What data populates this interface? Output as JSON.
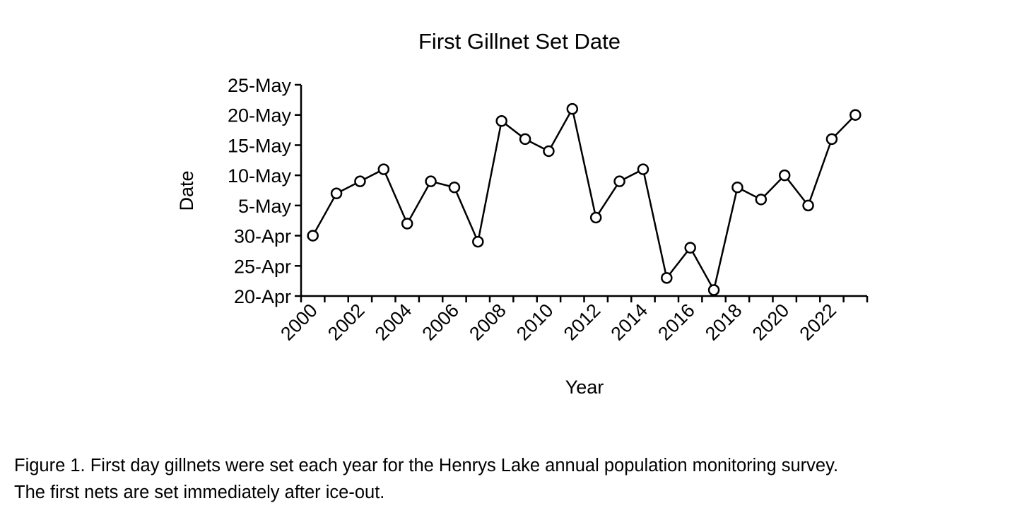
{
  "chart_data": {
    "type": "line",
    "title": "First Gillnet Set Date",
    "xlabel": "Year",
    "ylabel": "Date",
    "x": [
      2000,
      2001,
      2002,
      2003,
      2004,
      2005,
      2006,
      2007,
      2008,
      2009,
      2010,
      2011,
      2012,
      2013,
      2014,
      2015,
      2016,
      2017,
      2018,
      2019,
      2020,
      2021,
      2022,
      2023
    ],
    "series": [
      {
        "values": [
          "30-Apr",
          "7-May",
          "9-May",
          "11-May",
          "2-May",
          "9-May",
          "8-May",
          "29-Apr",
          "19-May",
          "16-May",
          "14-May",
          "21-May",
          "3-May",
          "9-May",
          "11-May",
          "23-Apr",
          "28-Apr",
          "21-Apr",
          "8-May",
          "6-May",
          "10-May",
          "5-May",
          "16-May",
          "20-May"
        ],
        "marker": "open-circle",
        "color": "#000000"
      }
    ],
    "x_tick_labels": [
      "2000",
      "2002",
      "2004",
      "2006",
      "2008",
      "2010",
      "2012",
      "2014",
      "2016",
      "2018",
      "2020",
      "2022"
    ],
    "y_tick_labels": [
      "20-Apr",
      "25-Apr",
      "30-Apr",
      "5-May",
      "10-May",
      "15-May",
      "20-May",
      "25-May"
    ],
    "ylim": [
      "20-Apr",
      "25-May"
    ],
    "grid": false,
    "legend": "none"
  },
  "caption": {
    "line1": "Figure 1. First day gillnets were set each year for the Henrys Lake annual population monitoring survey.",
    "line2": "The first nets are set immediately after ice-out."
  }
}
